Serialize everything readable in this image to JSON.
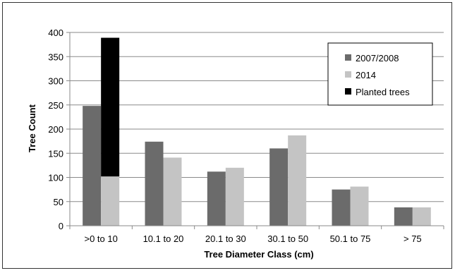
{
  "chart_data": {
    "type": "bar",
    "title": "",
    "xlabel": "Tree Diameter Class (cm)",
    "ylabel": "Tree Count",
    "ylim": [
      0,
      400
    ],
    "yticks": [
      0,
      50,
      100,
      150,
      200,
      250,
      300,
      350,
      400
    ],
    "ytick_labels": [
      "0",
      "50",
      "100",
      "150",
      "200",
      "250",
      "300",
      "350",
      "400"
    ],
    "grid": true,
    "legend_position": "top-right",
    "categories": [
      ">0 to 10",
      "10.1 to 20",
      "20.1 to 30",
      "30.1 to 50",
      "50.1 to 75",
      "> 75"
    ],
    "series": [
      {
        "name": "2007/2008",
        "color": "#6b6b6b",
        "values": [
          248,
          174,
          112,
          160,
          75,
          38
        ]
      },
      {
        "name": "2014",
        "color": "#c4c4c4",
        "values": [
          102,
          141,
          120,
          187,
          81,
          38
        ]
      },
      {
        "name": "Planted trees",
        "color": "#000000",
        "stacked_on": "2014",
        "values": [
          287,
          0,
          0,
          0,
          0,
          0
        ]
      }
    ]
  }
}
